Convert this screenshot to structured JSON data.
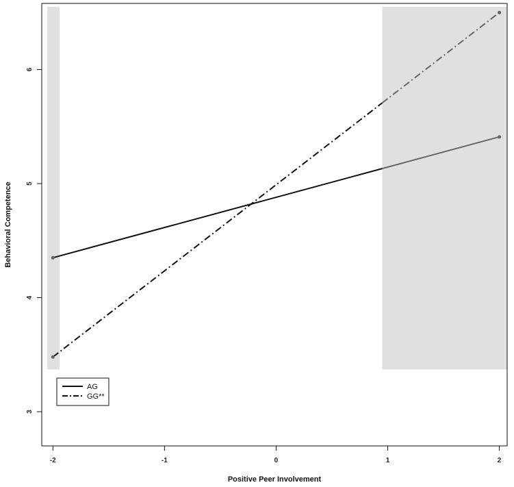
{
  "chart_data": {
    "type": "line",
    "title": "",
    "xlabel": "Positive Peer Involvement",
    "ylabel": "Behavioral Competence",
    "xlim": [
      -2.1,
      2.07
    ],
    "ylim": [
      2.7,
      6.58
    ],
    "xticks": [
      -2,
      -1,
      0,
      1,
      2
    ],
    "yticks": [
      3,
      4,
      5,
      6
    ],
    "shaded_regions": [
      {
        "x": [
          -2.05,
          -1.94
        ],
        "y": [
          3.37,
          6.55
        ],
        "color": "#e0e0e0"
      },
      {
        "x": [
          0.95,
          2.07
        ],
        "y": [
          3.37,
          6.55
        ],
        "color": "#e0e0e0"
      }
    ],
    "series": [
      {
        "name": "AG",
        "linestyle": "solid",
        "color": "#111111",
        "x": [
          -2,
          2
        ],
        "y": [
          4.35,
          5.41
        ]
      },
      {
        "name": "GG**",
        "linestyle": "dashdot",
        "color": "#111111",
        "x": [
          -2,
          2
        ],
        "y": [
          3.48,
          6.5
        ]
      }
    ],
    "legend": {
      "position": "bottom-left",
      "entries": [
        "AG",
        "GG**"
      ]
    },
    "grid": false
  }
}
